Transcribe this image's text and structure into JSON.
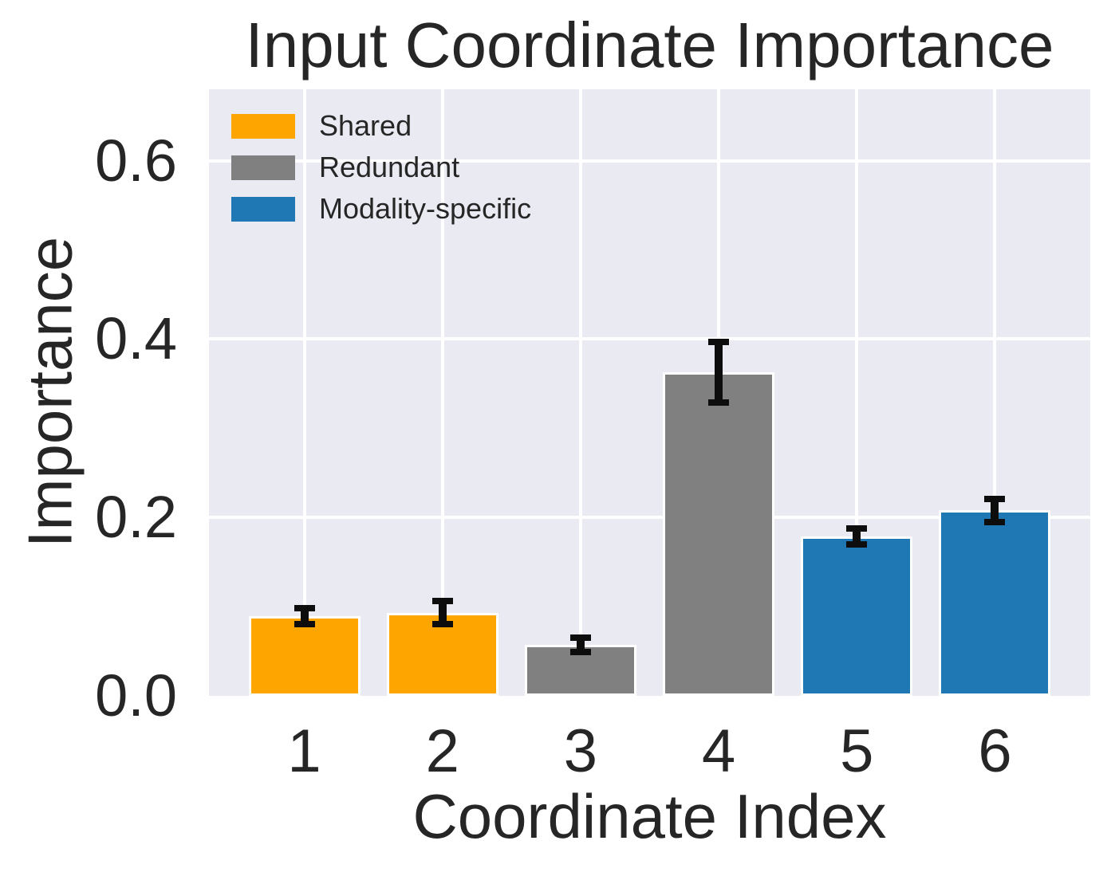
{
  "chart_data": {
    "type": "bar",
    "title": "Input Coordinate Importance",
    "xlabel": "Coordinate Index",
    "ylabel": "Importance",
    "categories": [
      "1",
      "2",
      "3",
      "4",
      "5",
      "6"
    ],
    "values": [
      0.089,
      0.093,
      0.057,
      0.363,
      0.179,
      0.208
    ],
    "errors": [
      0.009,
      0.013,
      0.008,
      0.034,
      0.009,
      0.013
    ],
    "bar_colors": [
      "#ffa500",
      "#ffa500",
      "#808080",
      "#808080",
      "#1f77b4",
      "#1f77b4"
    ],
    "bar_groups": [
      "Shared",
      "Shared",
      "Redundant",
      "Redundant",
      "Modality-specific",
      "Modality-specific"
    ],
    "ylim": [
      0,
      0.68
    ],
    "ytick_values": [
      0.0,
      0.2,
      0.4,
      0.6
    ],
    "ytick_labels": [
      "0.0",
      "0.2",
      "0.4",
      "0.6"
    ],
    "grid": true,
    "legend": {
      "position": "upper-left",
      "entries": [
        {
          "label": "Shared",
          "color": "#ffa500"
        },
        {
          "label": "Redundant",
          "color": "#808080"
        },
        {
          "label": "Modality-specific",
          "color": "#1f77b4"
        }
      ]
    },
    "colors": {
      "figure_background": "#ffffff",
      "plot_background": "#eaeaf2",
      "grid": "#ffffff",
      "text": "#262626",
      "error_bar": "#0d0d0d",
      "bar_edge": "#ffffff"
    }
  }
}
